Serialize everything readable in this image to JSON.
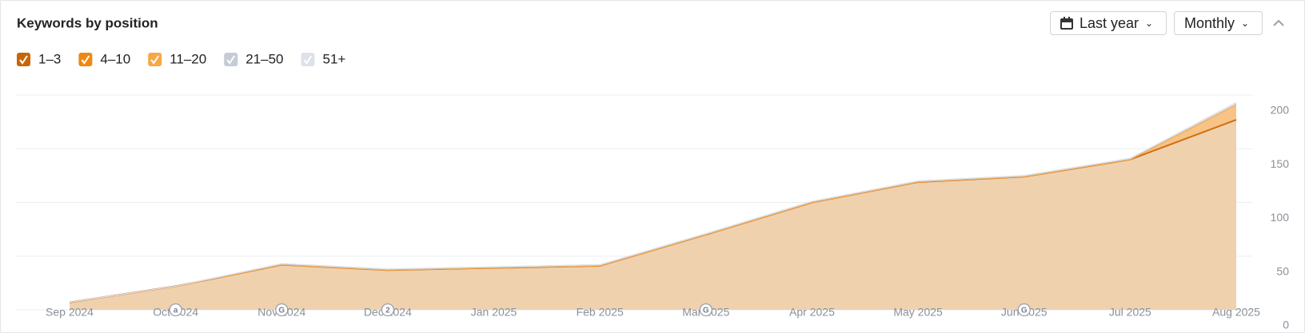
{
  "header": {
    "title": "Keywords by position",
    "range_button": "Last year",
    "interval_button": "Monthly"
  },
  "chart_data": {
    "type": "area",
    "stacked": true,
    "categories": [
      "Sep 2024",
      "Oct 2024",
      "Nov 2024",
      "Dec 2024",
      "Jan 2025",
      "Feb 2025",
      "Mar 2025",
      "Apr 2025",
      "May 2025",
      "Jun 2025",
      "Jul 2025",
      "Aug 2025"
    ],
    "series": [
      {
        "name": "1–3",
        "color": "#c8650a",
        "values": [
          7,
          22,
          42,
          37,
          39,
          41,
          70,
          100,
          119,
          124,
          140,
          177
        ]
      },
      {
        "name": "4–10",
        "color": "#f0880f",
        "values": [
          0,
          0,
          0,
          0,
          0,
          0,
          0,
          0,
          0,
          0,
          0,
          14
        ]
      },
      {
        "name": "11–20",
        "color": "#f7a843",
        "values": [
          0,
          0,
          0,
          0,
          0,
          0,
          0,
          0,
          0,
          0,
          0,
          0
        ]
      },
      {
        "name": "21–50",
        "color": "#c5ccd6",
        "values": [
          0,
          0,
          1,
          1,
          1,
          1,
          1,
          1,
          1,
          1,
          1,
          2
        ]
      },
      {
        "name": "51+",
        "color": "#dde2ea",
        "values": [
          0,
          0,
          0,
          0,
          0,
          0,
          0,
          0,
          0,
          0,
          0,
          0
        ]
      }
    ],
    "ylim": [
      0,
      200
    ],
    "yticks": [
      0,
      50,
      100,
      150,
      200
    ],
    "grid": true,
    "annotations": [
      {
        "category": "Oct 2024",
        "text": "a"
      },
      {
        "category": "Nov 2024",
        "text": "G"
      },
      {
        "category": "Dec 2024",
        "text": "2"
      },
      {
        "category": "Mar 2025",
        "text": "G"
      },
      {
        "category": "Jun 2025",
        "text": "G"
      }
    ]
  }
}
